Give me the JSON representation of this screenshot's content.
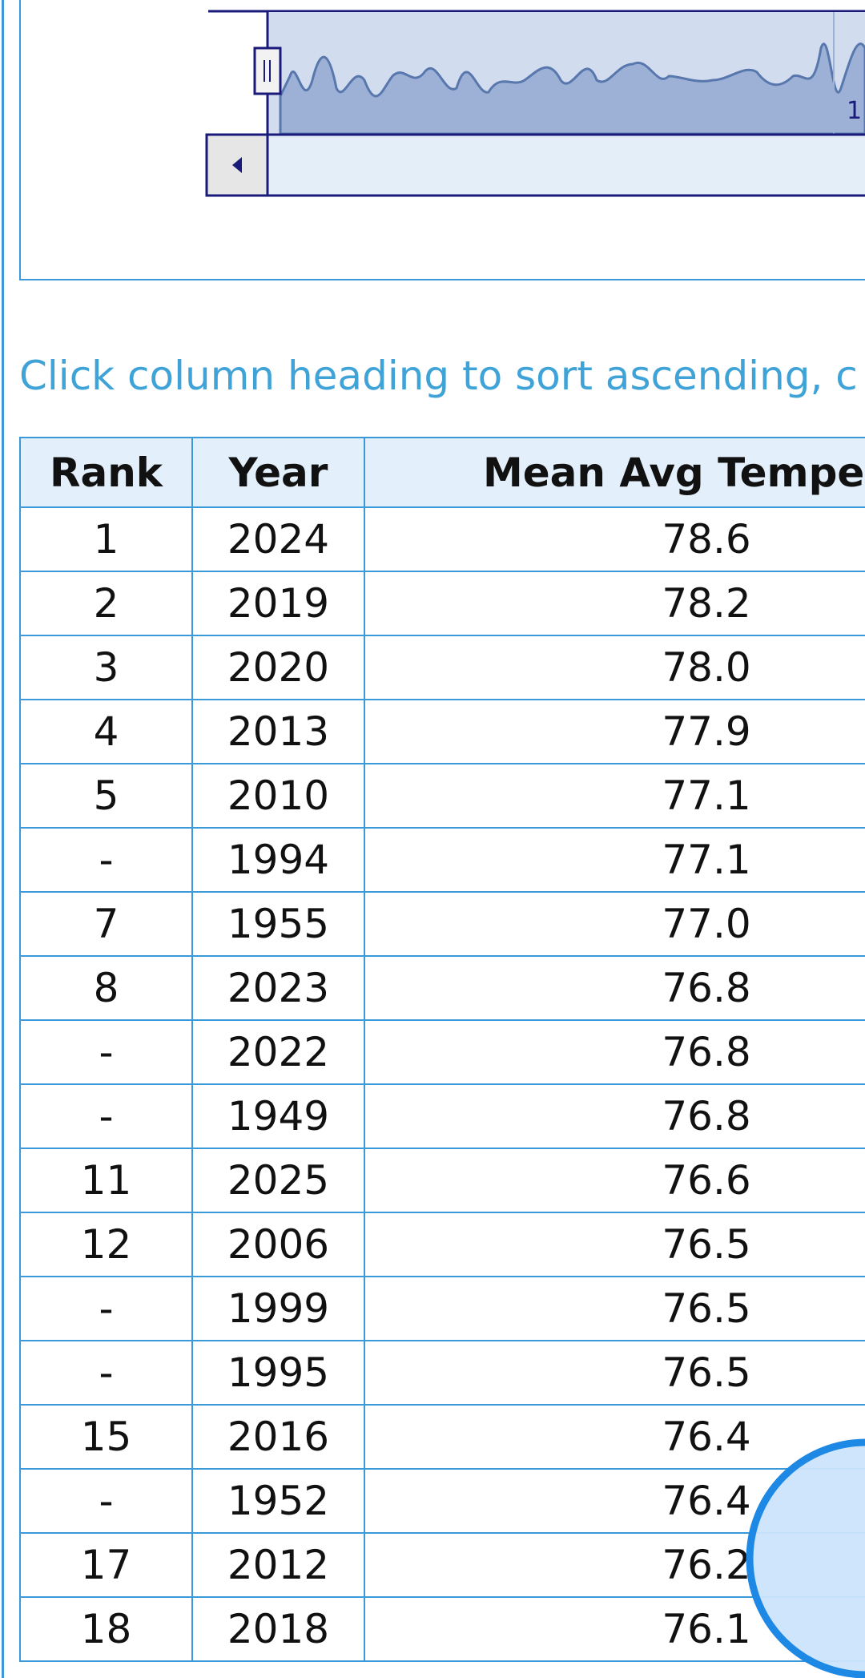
{
  "navigator": {
    "label": "1"
  },
  "instructions": "Click column heading to sort ascending, c",
  "table": {
    "headers": [
      "Rank",
      "Year",
      "Mean Avg Temperat"
    ],
    "rows": [
      [
        "1",
        "2024",
        "78.6"
      ],
      [
        "2",
        "2019",
        "78.2"
      ],
      [
        "3",
        "2020",
        "78.0"
      ],
      [
        "4",
        "2013",
        "77.9"
      ],
      [
        "5",
        "2010",
        "77.1"
      ],
      [
        "-",
        "1994",
        "77.1"
      ],
      [
        "7",
        "1955",
        "77.0"
      ],
      [
        "8",
        "2023",
        "76.8"
      ],
      [
        "-",
        "2022",
        "76.8"
      ],
      [
        "-",
        "1949",
        "76.8"
      ],
      [
        "11",
        "2025",
        "76.6"
      ],
      [
        "12",
        "2006",
        "76.5"
      ],
      [
        "-",
        "1999",
        "76.5"
      ],
      [
        "-",
        "1995",
        "76.5"
      ],
      [
        "15",
        "2016",
        "76.4"
      ],
      [
        "-",
        "1952",
        "76.4"
      ],
      [
        "17",
        "2012",
        "76.2"
      ],
      [
        "18",
        "2018",
        "76.1"
      ]
    ]
  }
}
